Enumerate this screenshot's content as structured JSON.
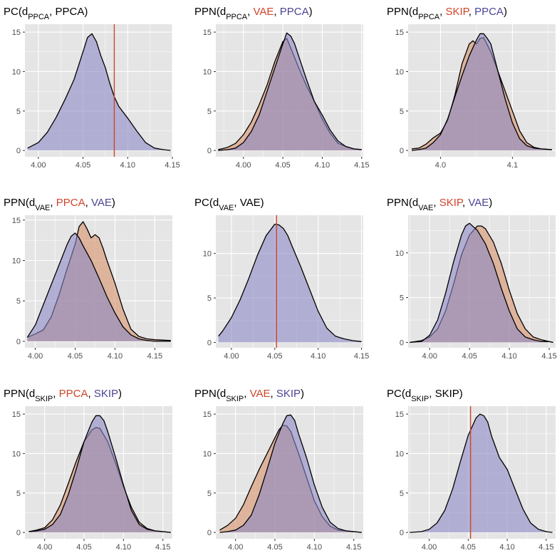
{
  "colors": {
    "panel_bg": "#e5e5e5",
    "grid_major": "#ffffff",
    "fill_blue": "#8c88c4",
    "fill_orange": "#d7916a",
    "line_black": "#000000",
    "vline_red": "#d0442a",
    "title_red": "#d0442a",
    "title_blue": "#4a4595"
  },
  "panels": [
    {
      "title_parts": [
        {
          "text": "PC(d",
          "color": "black"
        },
        {
          "text": "PPCA",
          "color": "black",
          "sub": true
        },
        {
          "text": ", PPCA)",
          "color": "black"
        }
      ],
      "xlim": [
        3.985,
        4.15
      ],
      "ylim": [
        -0.8,
        16
      ],
      "xticks": [
        4.0,
        4.05,
        4.1,
        4.15
      ],
      "yticks": [
        0,
        5,
        10,
        15
      ],
      "vline": 4.085,
      "densities": [
        {
          "fill": "blue",
          "x": [
            3.988,
            4.0,
            4.01,
            4.02,
            4.03,
            4.04,
            4.05,
            4.055,
            4.06,
            4.065,
            4.07,
            4.075,
            4.08,
            4.085,
            4.09,
            4.1,
            4.11,
            4.12,
            4.13,
            4.14,
            4.148
          ],
          "y": [
            0.3,
            1.0,
            2.3,
            4.2,
            6.5,
            9.0,
            12.5,
            14.3,
            14.8,
            13.8,
            12.0,
            10.5,
            8.5,
            6.8,
            5.6,
            4.1,
            2.5,
            1.0,
            0.3,
            0.1,
            0.0
          ]
        }
      ]
    },
    {
      "title_parts": [
        {
          "text": "PPN(d",
          "color": "black"
        },
        {
          "text": "PPCA",
          "color": "black",
          "sub": true
        },
        {
          "text": ", ",
          "color": "black"
        },
        {
          "text": "VAE",
          "color": "red"
        },
        {
          "text": ", ",
          "color": "black"
        },
        {
          "text": "PPCA",
          "color": "blue"
        },
        {
          "text": ")",
          "color": "black"
        }
      ],
      "xlim": [
        3.965,
        4.152
      ],
      "ylim": [
        -0.8,
        16
      ],
      "xticks": [
        4.0,
        4.05,
        4.1,
        4.15
      ],
      "yticks": [
        0,
        5,
        10,
        15
      ],
      "densities": [
        {
          "fill": "orange",
          "x": [
            3.968,
            3.98,
            3.99,
            4.0,
            4.01,
            4.02,
            4.03,
            4.04,
            4.05,
            4.055,
            4.06,
            4.07,
            4.08,
            4.09,
            4.1,
            4.11,
            4.12,
            4.13,
            4.14,
            4.15
          ],
          "y": [
            0.1,
            0.4,
            0.9,
            2.0,
            3.6,
            5.8,
            8.3,
            11.3,
            13.8,
            14.2,
            13.0,
            10.5,
            8.2,
            6.2,
            4.0,
            2.2,
            0.9,
            0.5,
            0.2,
            0.1
          ]
        },
        {
          "fill": "blue",
          "x": [
            3.968,
            3.98,
            3.99,
            4.0,
            4.01,
            4.02,
            4.03,
            4.04,
            4.05,
            4.055,
            4.06,
            4.065,
            4.07,
            4.08,
            4.09,
            4.1,
            4.11,
            4.12,
            4.13,
            4.14,
            4.15
          ],
          "y": [
            0.0,
            0.1,
            0.3,
            1.0,
            2.4,
            4.5,
            7.5,
            10.5,
            13.5,
            14.9,
            14.5,
            13.5,
            12.0,
            9.0,
            6.2,
            4.5,
            2.6,
            1.2,
            0.5,
            0.2,
            0.1
          ]
        }
      ]
    },
    {
      "title_parts": [
        {
          "text": "PPN(d",
          "color": "black"
        },
        {
          "text": "PPCA",
          "color": "black",
          "sub": true
        },
        {
          "text": ", ",
          "color": "black"
        },
        {
          "text": "SKIP",
          "color": "red"
        },
        {
          "text": ", ",
          "color": "black"
        },
        {
          "text": "PPCA",
          "color": "blue"
        },
        {
          "text": ")",
          "color": "black"
        }
      ],
      "xlim": [
        3.955,
        4.16
      ],
      "ylim": [
        -0.8,
        16
      ],
      "xticks": [
        4.0,
        4.1
      ],
      "yticks": [
        0,
        5,
        10,
        15
      ],
      "densities": [
        {
          "fill": "orange",
          "x": [
            3.96,
            3.97,
            3.98,
            3.99,
            4.0,
            4.01,
            4.02,
            4.03,
            4.04,
            4.045,
            4.05,
            4.055,
            4.06,
            4.07,
            4.08,
            4.09,
            4.1,
            4.11,
            4.12,
            4.13,
            4.14,
            4.155
          ],
          "y": [
            0.2,
            0.3,
            0.8,
            1.6,
            2.2,
            3.8,
            7.0,
            11.0,
            13.5,
            13.9,
            13.5,
            14.2,
            14.3,
            12.5,
            10.0,
            7.5,
            5.0,
            2.5,
            1.0,
            0.4,
            0.2,
            0.1
          ]
        },
        {
          "fill": "blue",
          "x": [
            3.96,
            3.97,
            3.98,
            3.99,
            4.0,
            4.01,
            4.02,
            4.03,
            4.04,
            4.05,
            4.055,
            4.06,
            4.065,
            4.07,
            4.08,
            4.09,
            4.1,
            4.11,
            4.12,
            4.13,
            4.14,
            4.155
          ],
          "y": [
            0.0,
            0.1,
            0.3,
            1.0,
            2.0,
            4.0,
            6.8,
            9.5,
            12.0,
            14.0,
            14.8,
            14.8,
            14.2,
            13.5,
            10.0,
            6.5,
            3.5,
            1.5,
            0.6,
            0.3,
            0.2,
            0.1
          ]
        }
      ]
    },
    {
      "title_parts": [
        {
          "text": "PPN(d",
          "color": "black"
        },
        {
          "text": "VAE",
          "color": "black",
          "sub": true
        },
        {
          "text": ", ",
          "color": "black"
        },
        {
          "text": "PPCA",
          "color": "red"
        },
        {
          "text": ", ",
          "color": "black"
        },
        {
          "text": "VAE",
          "color": "blue"
        },
        {
          "text": ")",
          "color": "black"
        }
      ],
      "xlim": [
        3.987,
        4.172
      ],
      "ylim": [
        -0.8,
        15.6
      ],
      "xticks": [
        4.0,
        4.05,
        4.1,
        4.15
      ],
      "yticks": [
        0,
        5,
        10,
        15
      ],
      "densities": [
        {
          "fill": "orange",
          "x": [
            3.99,
            4.0,
            4.01,
            4.02,
            4.03,
            4.04,
            4.05,
            4.055,
            4.06,
            4.065,
            4.07,
            4.075,
            4.08,
            4.085,
            4.09,
            4.1,
            4.11,
            4.12,
            4.13,
            4.14,
            4.15,
            4.17
          ],
          "y": [
            0.5,
            0.9,
            1.4,
            3.0,
            5.8,
            9.0,
            12.0,
            14.2,
            14.8,
            13.9,
            12.8,
            13.2,
            12.8,
            11.5,
            10.0,
            7.2,
            4.0,
            1.5,
            0.6,
            0.3,
            0.2,
            0.1
          ]
        },
        {
          "fill": "blue",
          "x": [
            3.99,
            4.0,
            4.01,
            4.02,
            4.03,
            4.04,
            4.045,
            4.05,
            4.055,
            4.06,
            4.07,
            4.08,
            4.09,
            4.1,
            4.11,
            4.12,
            4.13,
            4.14,
            4.15,
            4.17
          ],
          "y": [
            0.5,
            2.0,
            4.5,
            7.0,
            9.5,
            12.0,
            13.0,
            13.4,
            12.8,
            11.8,
            10.0,
            7.8,
            5.5,
            3.5,
            1.8,
            0.8,
            0.3,
            0.1,
            0.0,
            0.0
          ]
        }
      ]
    },
    {
      "title_parts": [
        {
          "text": "PC(d",
          "color": "black"
        },
        {
          "text": "VAE",
          "color": "black",
          "sub": true
        },
        {
          "text": ", VAE)",
          "color": "black"
        }
      ],
      "xlim": [
        3.982,
        4.152
      ],
      "ylim": [
        -0.6,
        14.3
      ],
      "xticks": [
        4.0,
        4.05,
        4.1,
        4.15
      ],
      "yticks": [
        0,
        5,
        10
      ],
      "vline": 4.052,
      "densities": [
        {
          "fill": "blue",
          "x": [
            3.985,
            3.99,
            4.0,
            4.01,
            4.02,
            4.03,
            4.04,
            4.05,
            4.055,
            4.06,
            4.065,
            4.07,
            4.08,
            4.09,
            4.1,
            4.11,
            4.12,
            4.13,
            4.14,
            4.15
          ],
          "y": [
            0.7,
            1.3,
            2.8,
            4.8,
            7.2,
            9.8,
            12.0,
            13.3,
            13.2,
            12.8,
            12.0,
            10.8,
            8.5,
            6.0,
            3.5,
            1.6,
            0.7,
            0.4,
            0.2,
            0.1
          ]
        }
      ]
    },
    {
      "title_parts": [
        {
          "text": "PPN(d",
          "color": "black"
        },
        {
          "text": "VAE",
          "color": "black",
          "sub": true
        },
        {
          "text": ", ",
          "color": "black"
        },
        {
          "text": "SKIP",
          "color": "red"
        },
        {
          "text": ", ",
          "color": "black"
        },
        {
          "text": "VAE",
          "color": "blue"
        },
        {
          "text": ")",
          "color": "black"
        }
      ],
      "xlim": [
        3.973,
        4.158
      ],
      "ylim": [
        -0.6,
        14.2
      ],
      "xticks": [
        4.0,
        4.05,
        4.1,
        4.15
      ],
      "yticks": [
        0,
        5,
        10
      ],
      "densities": [
        {
          "fill": "orange",
          "x": [
            3.975,
            3.99,
            4.0,
            4.01,
            4.02,
            4.03,
            4.04,
            4.05,
            4.06,
            4.065,
            4.07,
            4.08,
            4.09,
            4.1,
            4.11,
            4.12,
            4.13,
            4.14,
            4.15,
            4.155
          ],
          "y": [
            0.0,
            0.2,
            0.6,
            1.5,
            3.5,
            6.5,
            9.8,
            12.0,
            13.0,
            13.0,
            12.7,
            11.2,
            8.8,
            5.8,
            3.2,
            1.5,
            0.6,
            0.3,
            0.1,
            0.0
          ]
        },
        {
          "fill": "blue",
          "x": [
            3.975,
            3.99,
            4.0,
            4.01,
            4.02,
            4.03,
            4.04,
            4.045,
            4.05,
            4.06,
            4.07,
            4.08,
            4.09,
            4.1,
            4.11,
            4.12,
            4.13,
            4.14,
            4.15,
            4.155
          ],
          "y": [
            0.0,
            0.1,
            0.8,
            2.5,
            5.5,
            9.0,
            12.0,
            13.0,
            13.3,
            12.5,
            11.0,
            8.8,
            6.0,
            3.5,
            1.5,
            0.6,
            0.3,
            0.1,
            0.1,
            0.0
          ]
        }
      ]
    },
    {
      "title_parts": [
        {
          "text": "PPN(d",
          "color": "black"
        },
        {
          "text": "SKIP",
          "color": "black",
          "sub": true
        },
        {
          "text": ", ",
          "color": "black"
        },
        {
          "text": "PPCA",
          "color": "red"
        },
        {
          "text": ", ",
          "color": "black"
        },
        {
          "text": "SKIP",
          "color": "blue"
        },
        {
          "text": ")",
          "color": "black"
        }
      ],
      "xlim": [
        3.975,
        4.162
      ],
      "ylim": [
        -0.8,
        16
      ],
      "xticks": [
        4.0,
        4.05,
        4.1,
        4.15
      ],
      "yticks": [
        0,
        5,
        10,
        15
      ],
      "densities": [
        {
          "fill": "orange",
          "x": [
            3.98,
            3.99,
            4.0,
            4.01,
            4.02,
            4.03,
            4.04,
            4.05,
            4.06,
            4.065,
            4.07,
            4.08,
            4.09,
            4.1,
            4.11,
            4.12,
            4.13,
            4.14,
            4.15,
            4.16
          ],
          "y": [
            0.1,
            0.3,
            0.6,
            1.6,
            3.5,
            6.2,
            9.0,
            11.5,
            13.0,
            13.3,
            13.2,
            11.5,
            8.8,
            5.8,
            3.2,
            1.3,
            0.5,
            0.2,
            0.1,
            0.0
          ]
        },
        {
          "fill": "blue",
          "x": [
            3.98,
            3.99,
            4.0,
            4.01,
            4.02,
            4.03,
            4.04,
            4.05,
            4.06,
            4.065,
            4.07,
            4.075,
            4.08,
            4.09,
            4.1,
            4.11,
            4.12,
            4.13,
            4.14,
            4.15,
            4.16
          ],
          "y": [
            0.1,
            0.2,
            0.4,
            1.0,
            2.3,
            4.8,
            8.0,
            11.5,
            14.0,
            14.8,
            14.8,
            14.2,
            12.8,
            9.5,
            6.0,
            2.8,
            1.0,
            0.4,
            0.2,
            0.1,
            0.0
          ]
        }
      ]
    },
    {
      "title_parts": [
        {
          "text": "PPN(d",
          "color": "black"
        },
        {
          "text": "SKIP",
          "color": "black",
          "sub": true
        },
        {
          "text": ", ",
          "color": "black"
        },
        {
          "text": "VAE",
          "color": "red"
        },
        {
          "text": ", ",
          "color": "black"
        },
        {
          "text": "SKIP",
          "color": "blue"
        },
        {
          "text": ")",
          "color": "black"
        }
      ],
      "xlim": [
        3.975,
        4.162
      ],
      "ylim": [
        -0.8,
        16
      ],
      "xticks": [
        4.0,
        4.05,
        4.1,
        4.15
      ],
      "yticks": [
        0,
        5,
        10,
        15
      ],
      "densities": [
        {
          "fill": "orange",
          "x": [
            3.98,
            3.99,
            4.0,
            4.01,
            4.02,
            4.03,
            4.04,
            4.05,
            4.055,
            4.06,
            4.065,
            4.07,
            4.08,
            4.09,
            4.1,
            4.11,
            4.12,
            4.13,
            4.14,
            4.15,
            4.16
          ],
          "y": [
            0.3,
            0.9,
            1.8,
            3.5,
            5.8,
            8.0,
            10.0,
            12.0,
            13.0,
            13.6,
            13.5,
            12.8,
            10.0,
            7.0,
            4.0,
            2.0,
            0.8,
            0.3,
            0.2,
            0.1,
            0.0
          ]
        },
        {
          "fill": "blue",
          "x": [
            3.98,
            3.99,
            4.0,
            4.01,
            4.02,
            4.03,
            4.04,
            4.05,
            4.06,
            4.065,
            4.07,
            4.075,
            4.08,
            4.09,
            4.1,
            4.11,
            4.12,
            4.13,
            4.14,
            4.15,
            4.16
          ],
          "y": [
            0.0,
            0.1,
            0.3,
            0.9,
            2.2,
            4.8,
            8.0,
            11.3,
            13.8,
            14.8,
            14.9,
            14.2,
            12.5,
            9.5,
            6.0,
            3.2,
            1.3,
            0.5,
            0.2,
            0.1,
            0.0
          ]
        }
      ]
    },
    {
      "title_parts": [
        {
          "text": "PC(d",
          "color": "black"
        },
        {
          "text": "SKIP",
          "color": "black",
          "sub": true
        },
        {
          "text": ", SKIP)",
          "color": "black"
        }
      ],
      "xlim": [
        3.973,
        4.162
      ],
      "ylim": [
        -0.8,
        16
      ],
      "xticks": [
        4.0,
        4.05,
        4.1,
        4.15
      ],
      "yticks": [
        0,
        5,
        10,
        15
      ],
      "vline": 4.053,
      "densities": [
        {
          "fill": "blue",
          "x": [
            3.975,
            3.99,
            4.0,
            4.01,
            4.02,
            4.03,
            4.04,
            4.05,
            4.06,
            4.065,
            4.07,
            4.075,
            4.08,
            4.09,
            4.1,
            4.11,
            4.12,
            4.13,
            4.14,
            4.15,
            4.158
          ],
          "y": [
            0.0,
            0.1,
            0.4,
            1.2,
            2.8,
            5.5,
            9.0,
            12.3,
            14.5,
            15.0,
            14.8,
            14.0,
            12.2,
            9.5,
            8.0,
            5.5,
            3.0,
            1.2,
            0.4,
            0.1,
            0.0
          ]
        }
      ]
    }
  ]
}
